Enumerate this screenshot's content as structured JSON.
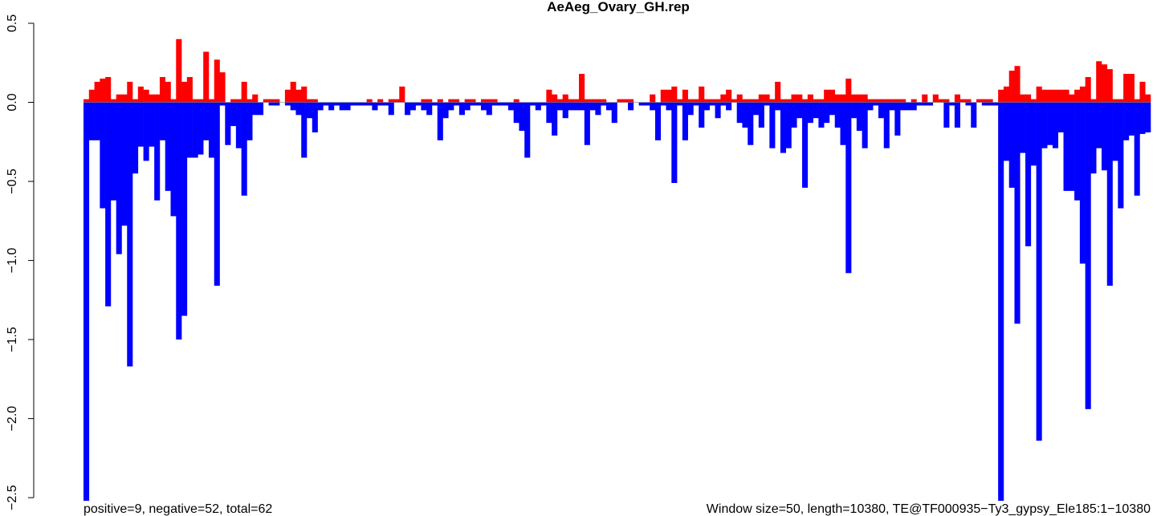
{
  "chart_data": {
    "type": "bar",
    "title": "AeAeg_Ovary_GH.rep",
    "annotations": [
      "positive=9, negative=52, total=62",
      "Window size=50, length=10380, TE@TF000935−Ty3_gypsy_Ele185:1−10380"
    ],
    "ylim": [
      -2.55,
      0.5
    ],
    "yticks": [
      0.5,
      {
        "value": 0,
        "label": "0.0"
      },
      {
        "value": -0.5,
        "label": "−0.5"
      },
      {
        "value": -1,
        "label": "−1.0"
      },
      {
        "value": -1.5,
        "label": "−1.5"
      },
      {
        "value": -2,
        "label": "−2.0"
      },
      {
        "value": -2.5,
        "label": "−2.5"
      }
    ],
    "series": [
      {
        "color": "#ff0000",
        "values": [
          0.02,
          0.08,
          0.13,
          0.15,
          0.16,
          0.02,
          0.05,
          0.05,
          0.13,
          0.02,
          0.1,
          0.08,
          0.05,
          0.05,
          0.16,
          0.13,
          0.02,
          0.4,
          0.13,
          0.16,
          0.02,
          0.02,
          0.32,
          0.02,
          0.27,
          0.19,
          0,
          0.02,
          0.02,
          0.13,
          0.02,
          0.05,
          0,
          0.02,
          0.02,
          0.02,
          0,
          0.08,
          0.13,
          0.08,
          0.1,
          0.02,
          0.02,
          0,
          0,
          0,
          0,
          0,
          0,
          0,
          0,
          0,
          0.02,
          0,
          0.02,
          0,
          0.02,
          0.02,
          0.1,
          0,
          0,
          0,
          0.02,
          0.02,
          0,
          0.02,
          0,
          0.02,
          0.02,
          0,
          0.02,
          0.02,
          0,
          0.02,
          0.02,
          0.02,
          0,
          0,
          0,
          0.02,
          0,
          0,
          0,
          0,
          0,
          0.08,
          0.05,
          0.02,
          0.05,
          0.02,
          0.02,
          0.18,
          0.02,
          0.02,
          0.02,
          0.02,
          0,
          0,
          0.02,
          0.02,
          0.02,
          0,
          0,
          0,
          0.05,
          0,
          0.08,
          0.08,
          0.1,
          0.02,
          0.08,
          0.02,
          0.02,
          0.1,
          0.02,
          0.02,
          0.02,
          0.05,
          0.08,
          0.02,
          0.05,
          0.02,
          0.02,
          0.02,
          0.05,
          0.05,
          0.02,
          0.13,
          0.02,
          0.02,
          0.05,
          0.05,
          0.02,
          0.05,
          0.02,
          0.02,
          0.08,
          0.08,
          0.05,
          0.05,
          0.15,
          0.05,
          0.05,
          0.05,
          0.02,
          0.02,
          0.02,
          0.02,
          0.02,
          0.02,
          0.02,
          0,
          0.02,
          0,
          0.05,
          0,
          0.05,
          0.02,
          0.02,
          0,
          0.05,
          0.02,
          0.02,
          0,
          0.02,
          0.02,
          0.02,
          0,
          0.08,
          0.1,
          0.2,
          0.23,
          0.05,
          0.05,
          0.02,
          0.1,
          0.08,
          0.08,
          0.08,
          0.08,
          0.08,
          0.05,
          0.08,
          0.1,
          0.16,
          0.02,
          0.26,
          0.24,
          0.21,
          0.02,
          0.02,
          0.18,
          0.18,
          0.02,
          0.13,
          0.05
        ]
      },
      {
        "color": "#0000ff",
        "values": [
          -2.52,
          -0.24,
          -0.24,
          -0.67,
          -1.29,
          -0.62,
          -0.96,
          -0.78,
          -1.67,
          -0.45,
          -0.28,
          -0.37,
          -0.28,
          -0.62,
          -0.24,
          -0.56,
          -0.72,
          -1.5,
          -1.35,
          -0.35,
          -0.35,
          -0.33,
          -0.24,
          -0.35,
          -1.16,
          -0.02,
          -0.27,
          -0.15,
          -0.29,
          -0.59,
          -0.24,
          -0.08,
          -0.08,
          0,
          -0.02,
          -0.02,
          0,
          -0.02,
          -0.05,
          -0.08,
          -0.35,
          -0.1,
          -0.19,
          -0.05,
          -0.02,
          -0.05,
          -0.02,
          -0.05,
          -0.05,
          -0.02,
          -0.02,
          -0.02,
          -0.02,
          -0.05,
          -0.02,
          -0.02,
          -0.08,
          0,
          0,
          -0.08,
          -0.05,
          -0.02,
          -0.05,
          -0.08,
          -0.02,
          -0.24,
          -0.1,
          -0.05,
          -0.02,
          -0.08,
          -0.05,
          -0.02,
          -0.02,
          -0.05,
          -0.08,
          -0.02,
          -0.02,
          -0.02,
          -0.05,
          -0.13,
          -0.18,
          -0.35,
          -0.02,
          -0.05,
          -0.02,
          -0.13,
          -0.21,
          -0.05,
          -0.1,
          -0.05,
          -0.05,
          -0.05,
          -0.27,
          -0.05,
          -0.08,
          -0.02,
          -0.05,
          -0.13,
          0,
          0,
          -0.05,
          0,
          -0.02,
          -0.02,
          -0.05,
          -0.24,
          -0.02,
          -0.05,
          -0.51,
          -0.02,
          -0.24,
          -0.08,
          -0.02,
          -0.16,
          -0.05,
          -0.02,
          -0.1,
          -0.02,
          -0.05,
          0,
          -0.13,
          -0.16,
          -0.27,
          -0.08,
          -0.16,
          -0.02,
          -0.29,
          -0.05,
          -0.32,
          -0.29,
          -0.16,
          -0.1,
          -0.54,
          -0.13,
          -0.1,
          -0.16,
          -0.13,
          -0.08,
          -0.16,
          -0.27,
          -1.08,
          -0.1,
          -0.18,
          -0.29,
          -0.05,
          -0.02,
          -0.1,
          -0.29,
          -0.05,
          -0.21,
          -0.05,
          -0.05,
          -0.05,
          -0.02,
          -0.02,
          -0.02,
          0,
          0,
          -0.16,
          -0.02,
          -0.16,
          0,
          -0.02,
          -0.16,
          0,
          -0.02,
          -0.02,
          -0.02,
          -2.52,
          -0.37,
          -0.54,
          -1.4,
          -0.32,
          -0.91,
          -0.4,
          -2.14,
          -0.29,
          -0.27,
          -0.29,
          -0.19,
          -0.56,
          -0.56,
          -0.62,
          -1.02,
          -1.94,
          -0.45,
          -0.29,
          -0.43,
          -1.16,
          -0.37,
          -0.67,
          -0.24,
          -0.21,
          -0.59,
          -0.2,
          -0.19
        ]
      }
    ]
  }
}
